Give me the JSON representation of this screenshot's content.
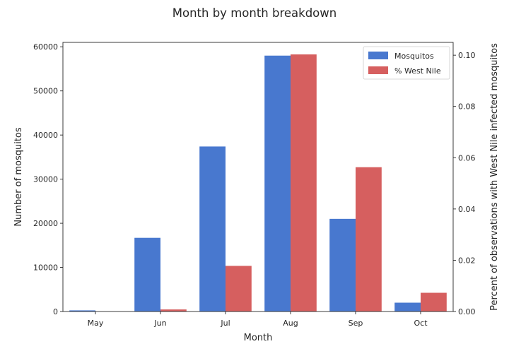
{
  "chart_data": {
    "type": "bar",
    "title": "Month by month breakdown",
    "xlabel": "Month",
    "ylabel_left": "Number of mosquitos",
    "ylabel_right": "Percent of observations with West Nile infected mosquitos",
    "categories": [
      "May",
      "Jun",
      "Jul",
      "Aug",
      "Sep",
      "Oct"
    ],
    "ylim_left": [
      0,
      61000
    ],
    "yticks_left": [
      0,
      10000,
      20000,
      30000,
      40000,
      50000,
      60000
    ],
    "ylim_right": [
      0,
      0.105
    ],
    "yticks_right": [
      "0.00",
      "0.02",
      "0.04",
      "0.06",
      "0.08",
      "0.10"
    ],
    "yticks_right_values": [
      0,
      0.02,
      0.04,
      0.06,
      0.08,
      0.1
    ],
    "series": [
      {
        "name": "Mosquitos",
        "axis": "left",
        "color": "#4878cf",
        "values": [
          255,
          16700,
          37400,
          58000,
          21000,
          2000
        ]
      },
      {
        "name": "% West Nile",
        "axis": "right",
        "color": "#d65f5f",
        "values": [
          0.0,
          0.0008,
          0.0178,
          0.1003,
          0.0563,
          0.0073
        ]
      }
    ],
    "legend_position": "top-right",
    "grid": false
  }
}
